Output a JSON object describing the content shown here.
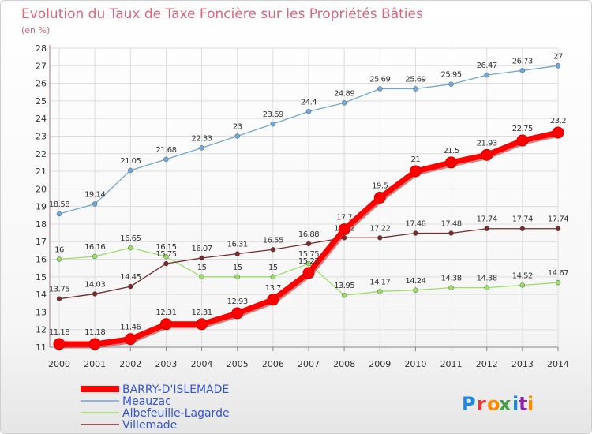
{
  "chart_data": {
    "type": "line",
    "title": "Evolution du Taux de Taxe Foncière sur les Propriétés Bâties",
    "subtitle": "(en %)",
    "xlabel": "",
    "ylabel": "",
    "x": [
      2000,
      2001,
      2002,
      2003,
      2004,
      2005,
      2006,
      2007,
      2008,
      2009,
      2010,
      2011,
      2012,
      2013,
      2014
    ],
    "ylim": [
      11,
      28
    ],
    "yticks": [
      11,
      12,
      13,
      14,
      15,
      16,
      17,
      18,
      19,
      20,
      21,
      22,
      23,
      24,
      25,
      26,
      27,
      28
    ],
    "grid": true,
    "legend_position": "bottom-left",
    "series": [
      {
        "name": "BARRY-D'ISLEMADE",
        "color": "#ff0000",
        "labels": [
          "11.18",
          "11.18",
          "11.46",
          "12.31",
          "12.31",
          "12.93",
          "13.7",
          "15.22",
          "17.7",
          "19.5",
          "21",
          "21.5",
          "21.93",
          "22.75",
          "23.2"
        ],
        "values": [
          11.18,
          11.18,
          11.46,
          12.31,
          12.31,
          12.93,
          13.7,
          15.22,
          17.7,
          19.5,
          21,
          21.5,
          21.93,
          22.75,
          23.2
        ]
      },
      {
        "name": "Meauzac",
        "color": "#6fa8dc",
        "labels": [
          "18.58",
          "19.14",
          "21.05",
          "21.68",
          "22.33",
          "23",
          "23.69",
          "24.4",
          "24.89",
          "25.69",
          "25.69",
          "25.95",
          "26.47",
          "26.73",
          "27"
        ],
        "values": [
          18.58,
          19.14,
          21.05,
          21.68,
          22.33,
          23,
          23.69,
          24.4,
          24.89,
          25.69,
          25.69,
          25.95,
          26.47,
          26.73,
          27
        ]
      },
      {
        "name": "Albefeuille-Lagarde",
        "color": "#99e066",
        "labels": [
          "16",
          "16.16",
          "16.65",
          "16.15",
          "15",
          "15",
          "15",
          "15.75",
          "13.95",
          "14.17",
          "14.24",
          "14.38",
          "14.38",
          "14.52",
          "14.67"
        ],
        "values": [
          16,
          16.16,
          16.65,
          16.15,
          15,
          15,
          15,
          15.75,
          13.95,
          14.17,
          14.24,
          14.38,
          14.38,
          14.52,
          14.67
        ]
      },
      {
        "name": "Villemade",
        "color": "#7b2a2a",
        "labels": [
          "13.75",
          "14.03",
          "14.45",
          "15.75",
          "16.07",
          "16.31",
          "16.55",
          "16.88",
          "17.22",
          "17.22",
          "17.48",
          "17.48",
          "17.74",
          "17.74",
          "17.74"
        ],
        "values": [
          13.75,
          14.03,
          14.45,
          15.75,
          16.07,
          16.31,
          16.55,
          16.88,
          17.22,
          17.22,
          17.48,
          17.48,
          17.74,
          17.74,
          17.74
        ]
      }
    ]
  },
  "logo": {
    "text": "Proxiti"
  }
}
